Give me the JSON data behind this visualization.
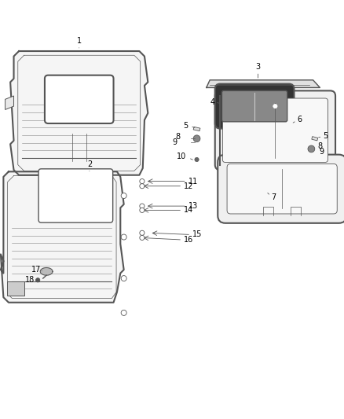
{
  "title": "",
  "bg_color": "#ffffff",
  "line_color": "#555555",
  "label_color": "#000000",
  "figsize": [
    4.38,
    5.33
  ],
  "dpi": 100
}
